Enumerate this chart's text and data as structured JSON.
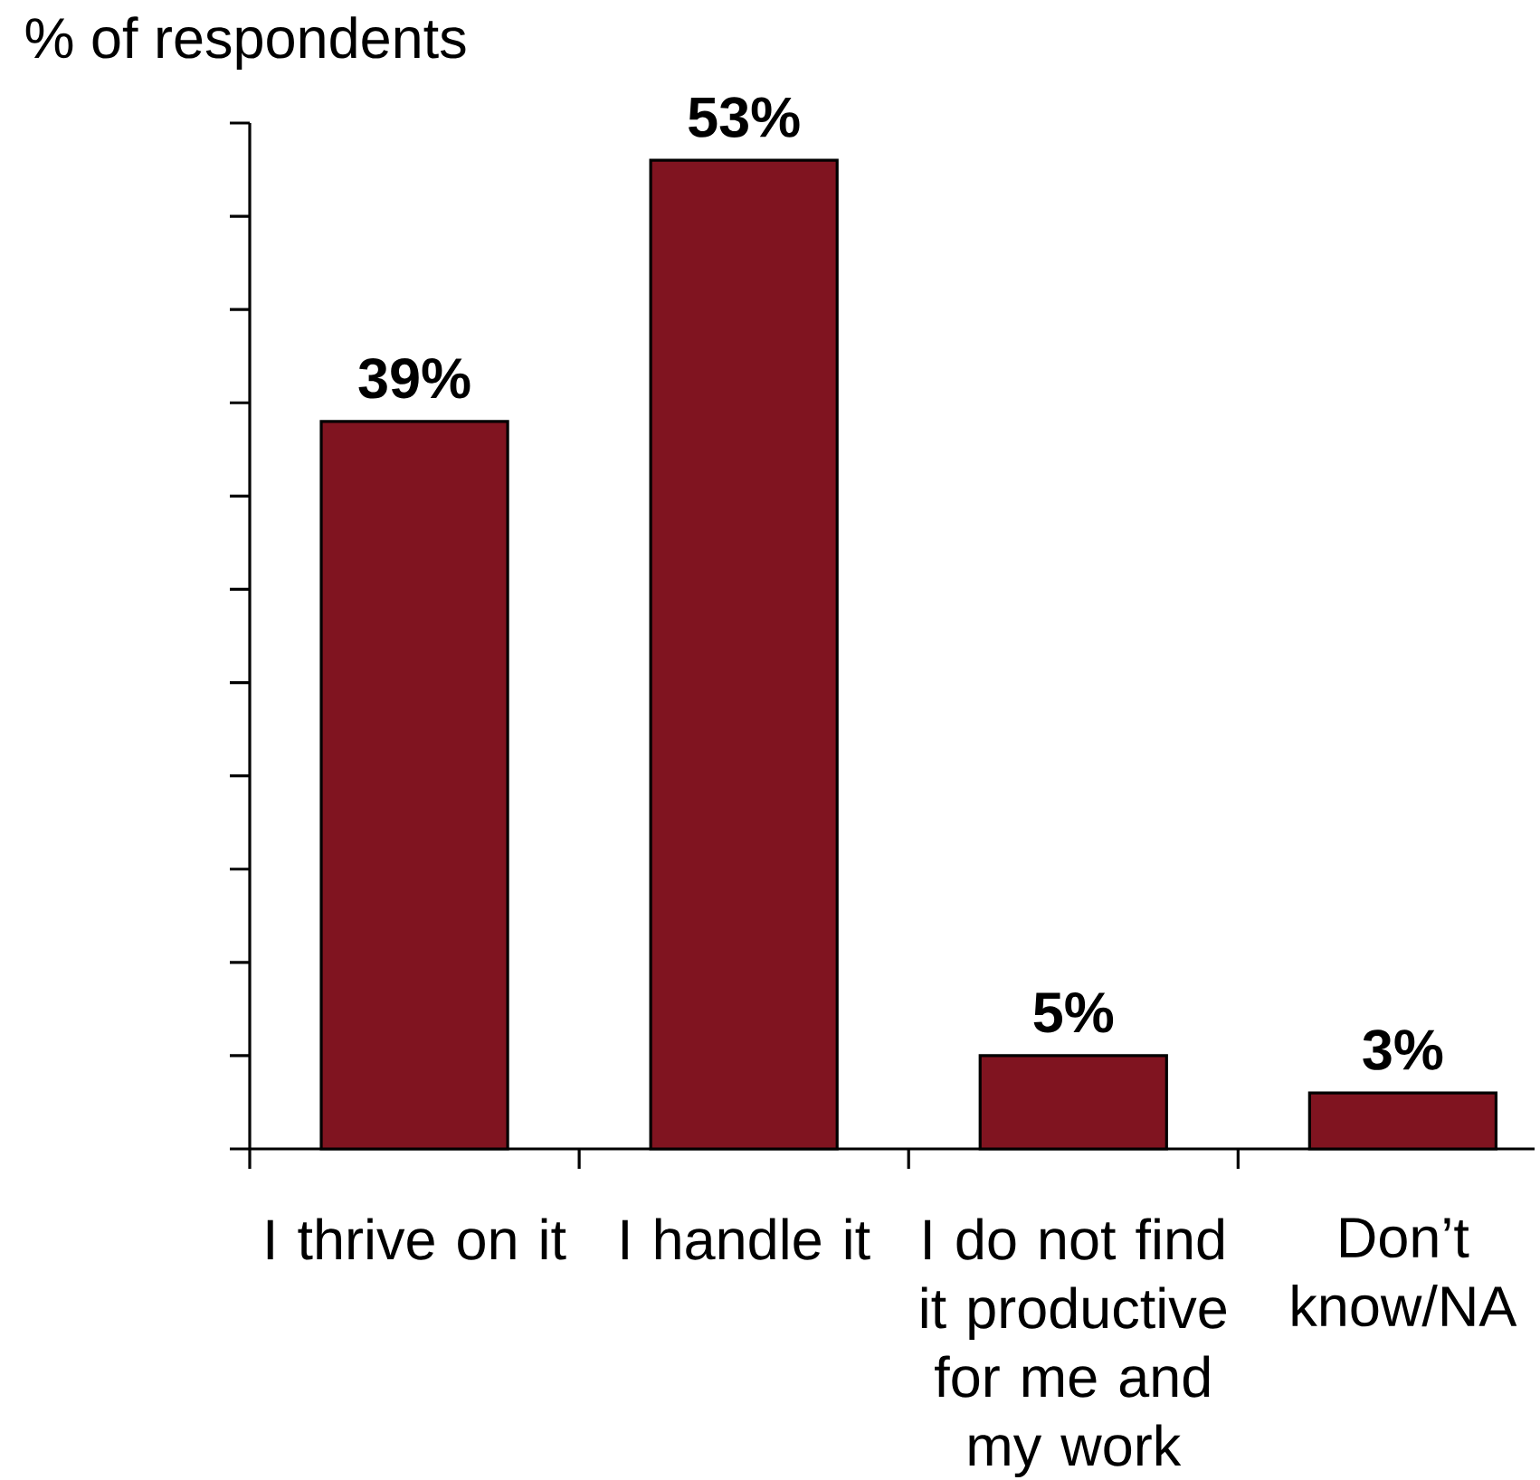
{
  "chart_data": {
    "type": "bar",
    "ylabel": "% of respondents",
    "categories": [
      "I thrive on it",
      "I handle it",
      "I do not find it productive for me and my work",
      "Don’t know/NA"
    ],
    "values": [
      39,
      53,
      5,
      3
    ],
    "value_labels": [
      "39%",
      "53%",
      "5%",
      "3%"
    ],
    "color": "#801420",
    "ylim": [
      0,
      55
    ],
    "yticks": [
      {
        "value": 0,
        "label": null
      },
      {
        "value": 5,
        "label": null
      },
      {
        "value": 10,
        "label": null
      },
      {
        "value": 15,
        "label": null
      },
      {
        "value": 20,
        "label": null
      },
      {
        "value": 25,
        "label": null
      },
      {
        "value": 30,
        "label": null
      },
      {
        "value": 35,
        "label": null
      },
      {
        "value": 40,
        "label": null
      },
      {
        "value": 45,
        "label": null
      },
      {
        "value": 50,
        "label": null
      },
      {
        "value": 55,
        "label": null
      }
    ],
    "tick_labels": "x"
  }
}
